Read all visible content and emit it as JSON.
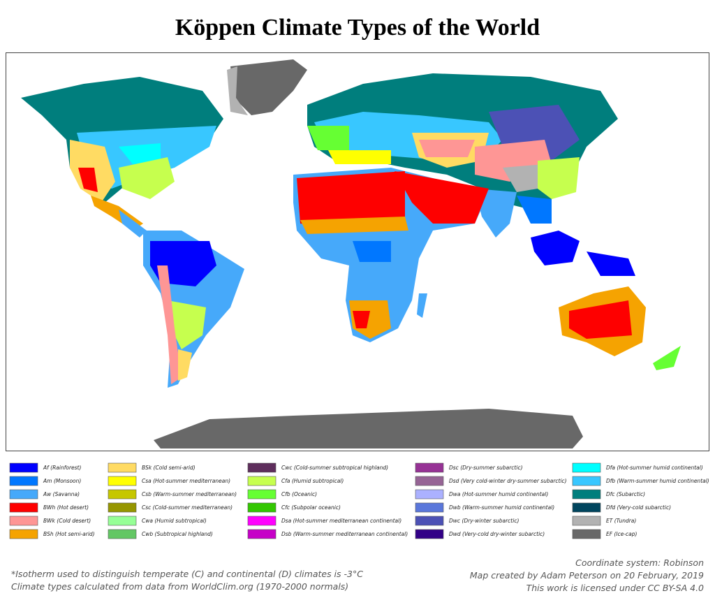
{
  "title": "Köppen Climate Types of the World",
  "legend": [
    {
      "label": "Af (Rainforest)",
      "color": "#0000fe"
    },
    {
      "label": "Am (Monsoon)",
      "color": "#0077ff"
    },
    {
      "label": "Aw (Savanna)",
      "color": "#46a9fa"
    },
    {
      "label": "BWh (Hot desert)",
      "color": "#fe0000"
    },
    {
      "label": "BWk (Cold desert)",
      "color": "#fe9695"
    },
    {
      "label": "BSh (Hot semi-arid)",
      "color": "#f5a301"
    },
    {
      "label": "BSk (Cold semi-arid)",
      "color": "#ffdb63"
    },
    {
      "label": "Csa (Hot-summer mediterranean)",
      "color": "#ffff00"
    },
    {
      "label": "Csb (Warm-summer mediterranean)",
      "color": "#c6c700"
    },
    {
      "label": "Csc (Cold-summer mediterranean)",
      "color": "#969600"
    },
    {
      "label": "Cwa (Humid subtropical)",
      "color": "#96ff96"
    },
    {
      "label": "Cwb (Subtropical highland)",
      "color": "#63c764"
    },
    {
      "label": "Cwc (Cold-summer subtropical highland)",
      "color": "#5e2e5c"
    },
    {
      "label": "Cfa (Humid subtropical)",
      "color": "#c6ff4e"
    },
    {
      "label": "Cfb (Oceanic)",
      "color": "#66ff33"
    },
    {
      "label": "Cfc (Subpolar oceanic)",
      "color": "#33c701"
    },
    {
      "label": "Dsa (Hot-summer mediterranean continental)",
      "color": "#ff00fe"
    },
    {
      "label": "Dsb (Warm-summer mediterranean continental)",
      "color": "#c600c7"
    },
    {
      "label": "Dsc (Dry-summer subarctic)",
      "color": "#963295"
    },
    {
      "label": "Dsd (Very cold-winter dry-summer subarctic)",
      "color": "#966495"
    },
    {
      "label": "Dwa (Hot-summer humid continental)",
      "color": "#abb1ff"
    },
    {
      "label": "Dwb (Warm-summer humid continental)",
      "color": "#5a77db"
    },
    {
      "label": "Dwc (Dry-winter subarctic)",
      "color": "#4c51b5"
    },
    {
      "label": "Dwd (Very-cold dry-winter subarctic)",
      "color": "#320087"
    },
    {
      "label": "Dfa (Hot-summer humid continental)",
      "color": "#00ffff"
    },
    {
      "label": "Dfb (Warm-summer humid continental)",
      "color": "#38c7ff"
    },
    {
      "label": "Dfc (Subarctic)",
      "color": "#007e7d"
    },
    {
      "label": "Dfd (Very-cold subarctic)",
      "color": "#00455e"
    },
    {
      "label": "ET (Tundra)",
      "color": "#b2b2b2"
    },
    {
      "label": "EF (Ice-cap)",
      "color": "#686868"
    }
  ],
  "notes": {
    "left": [
      "*Isotherm used to distinguish temperate (C) and continental (D) climates is -3°C",
      "Climate types calculated from data from WorldClim.org (1970-2000 normals)"
    ],
    "right": [
      "Coordinate system: Robinson",
      "Map created by Adam Peterson on 20 February, 2019",
      "This work is licensed under CC BY-SA 4.0"
    ]
  }
}
